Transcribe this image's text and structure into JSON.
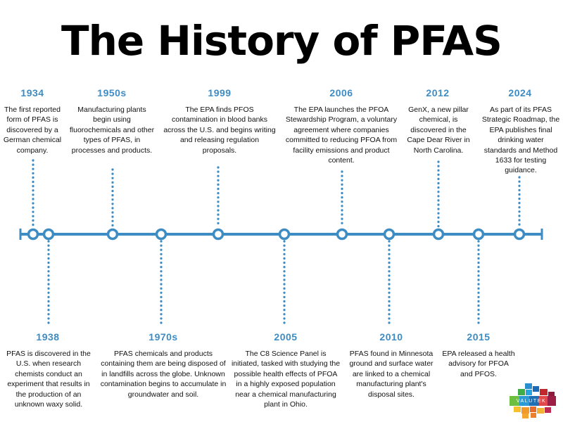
{
  "title": "The History of PFAS",
  "colors": {
    "accent": "#3d8cc4",
    "text": "#111111"
  },
  "events": [
    {
      "year": "1934",
      "text": "The first reported form of PFAS is discovered by a German chemical company."
    },
    {
      "year": "1938",
      "text": "PFAS is discovered in the U.S. when research chemists conduct an experiment that results in the production of an unknown waxy solid."
    },
    {
      "year": "1950s",
      "text": "Manufacturing plants begin using fluorochemicals and other types of PFAS, in processes and products."
    },
    {
      "year": "1970s",
      "text": "PFAS chemicals and products containing them are being disposed of in landfills across the globe. Unknown contamination begins to accumulate in groundwater and soil."
    },
    {
      "year": "1999",
      "text": "The EPA finds PFOS contamination in blood banks across the U.S. and begins writing and releasing regulation proposals."
    },
    {
      "year": "2005",
      "text": "The C8 Science Panel is initiated, tasked with studying the possible health effects of PFOA in a highly exposed population near a chemical manufacturing plant in Ohio."
    },
    {
      "year": "2006",
      "text": "The EPA launches the PFOA Stewardship Program, a voluntary agreement where companies committed to reducing PFOA from facility emissions and product content."
    },
    {
      "year": "2010",
      "text": "PFAS found in Minnesota ground and surface water are linked to a chemical manufacturing plant's disposal sites."
    },
    {
      "year": "2012",
      "text": "GenX, a new pillar chemical, is discovered in the Cape Dear River in North Carolina."
    },
    {
      "year": "2015",
      "text": "EPA released a health advisory for PFOA and PFOS."
    },
    {
      "year": "2024",
      "text": "As part of its PFAS Strategic Roadmap, the EPA publishes final drinking water standards and Method 1633 for testing guidance."
    }
  ],
  "logo": {
    "text": "VALUTEK"
  }
}
